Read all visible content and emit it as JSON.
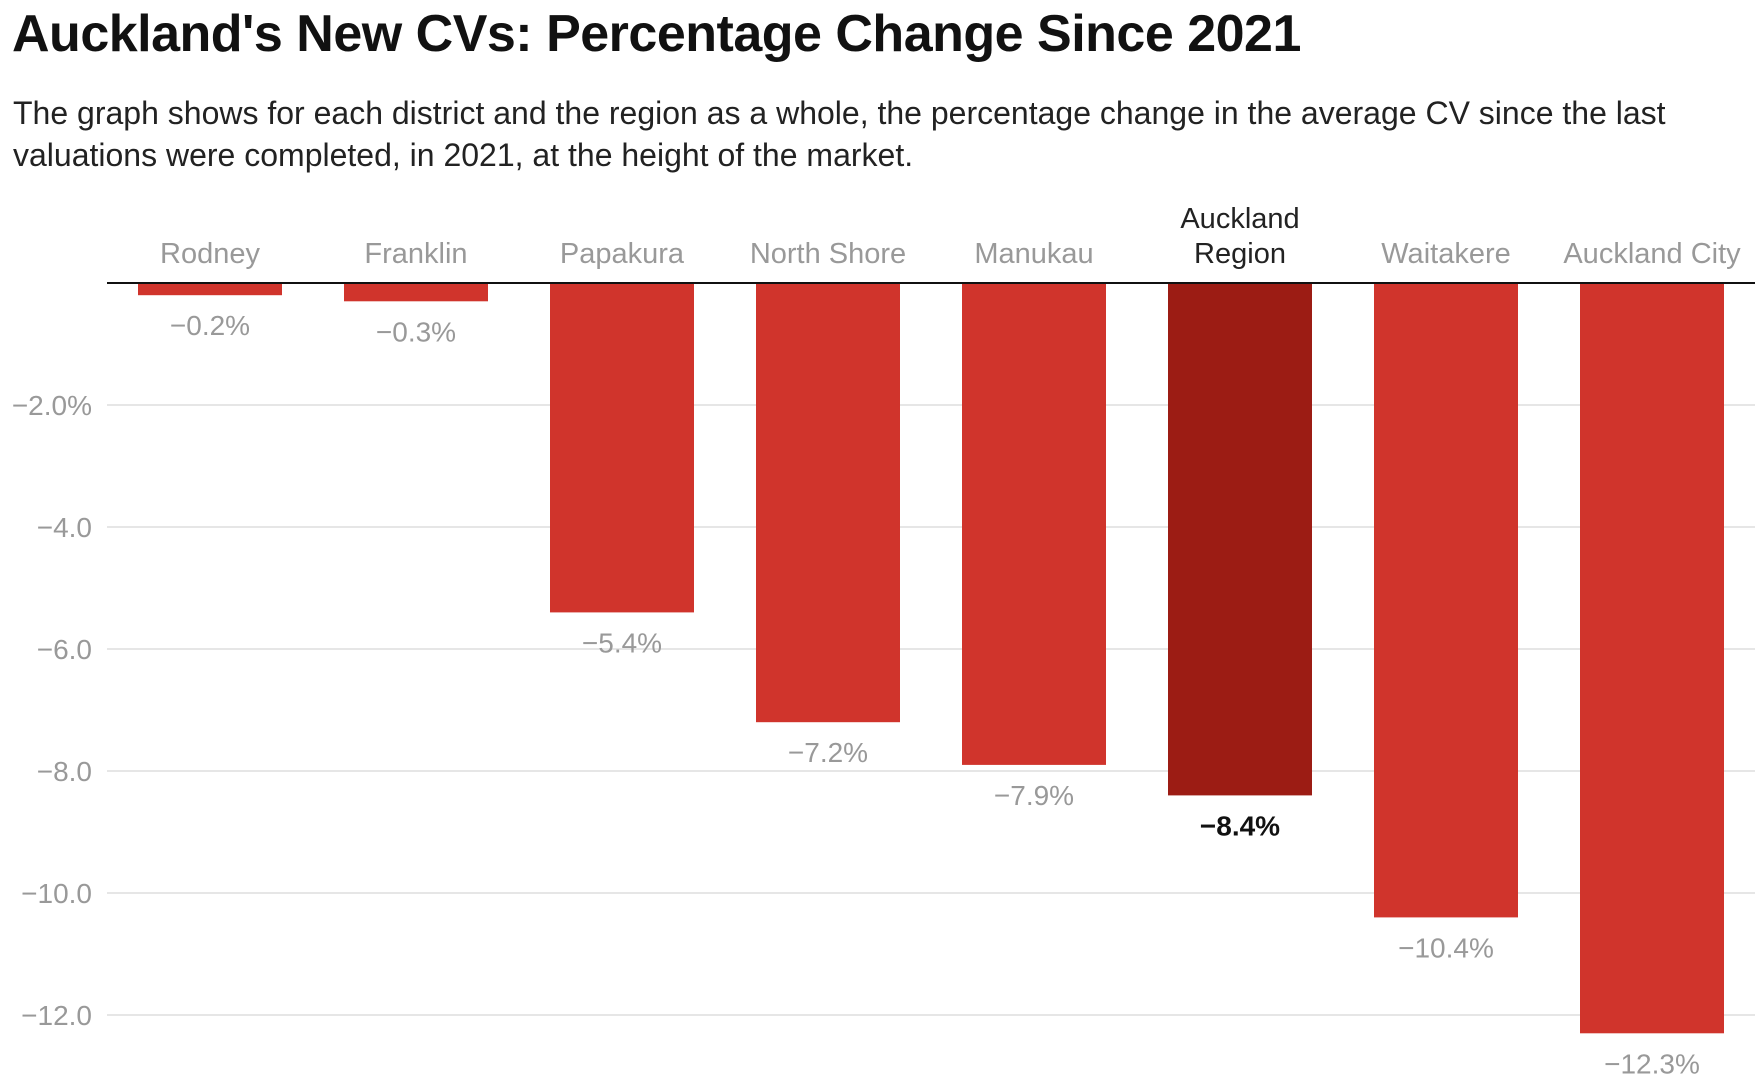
{
  "header": {
    "title": "Auckland's New CVs: Percentage Change Since 2021",
    "subtitle": "The graph shows for each district and the region as a whole, the percentage change in the average CV since the last valuations were completed, in 2021, at the height of the market."
  },
  "chart_data": {
    "type": "bar",
    "title": "Auckland's New CVs: Percentage Change Since 2021",
    "xlabel": "",
    "ylabel": "",
    "categories": [
      [
        "Rodney"
      ],
      [
        "Franklin"
      ],
      [
        "Papakura"
      ],
      [
        "North Shore"
      ],
      [
        "Manukau"
      ],
      [
        "Auckland",
        "Region"
      ],
      [
        "Waitakere"
      ],
      [
        "Auckland City"
      ]
    ],
    "values": [
      -0.2,
      -0.3,
      -5.4,
      -7.2,
      -7.9,
      -8.4,
      -10.4,
      -12.3
    ],
    "value_labels": [
      "−0.2%",
      "−0.3%",
      "−5.4%",
      "−7.2%",
      "−7.9%",
      "−8.4%",
      "−10.4%",
      "−12.3%"
    ],
    "highlight_index": 5,
    "ylim": [
      -12.8,
      0
    ],
    "yticks": [
      -2,
      -4,
      -6,
      -8,
      -10,
      -12
    ],
    "ytick_labels": [
      "−2.0%",
      "−4.0",
      "−6.0",
      "−8.0",
      "−10.0",
      "−12.0"
    ],
    "grid": true,
    "colors": {
      "bar": "#d0342c",
      "highlight": "#9c1c14",
      "grid": "#e6e6e6",
      "axis": "#111111"
    }
  }
}
